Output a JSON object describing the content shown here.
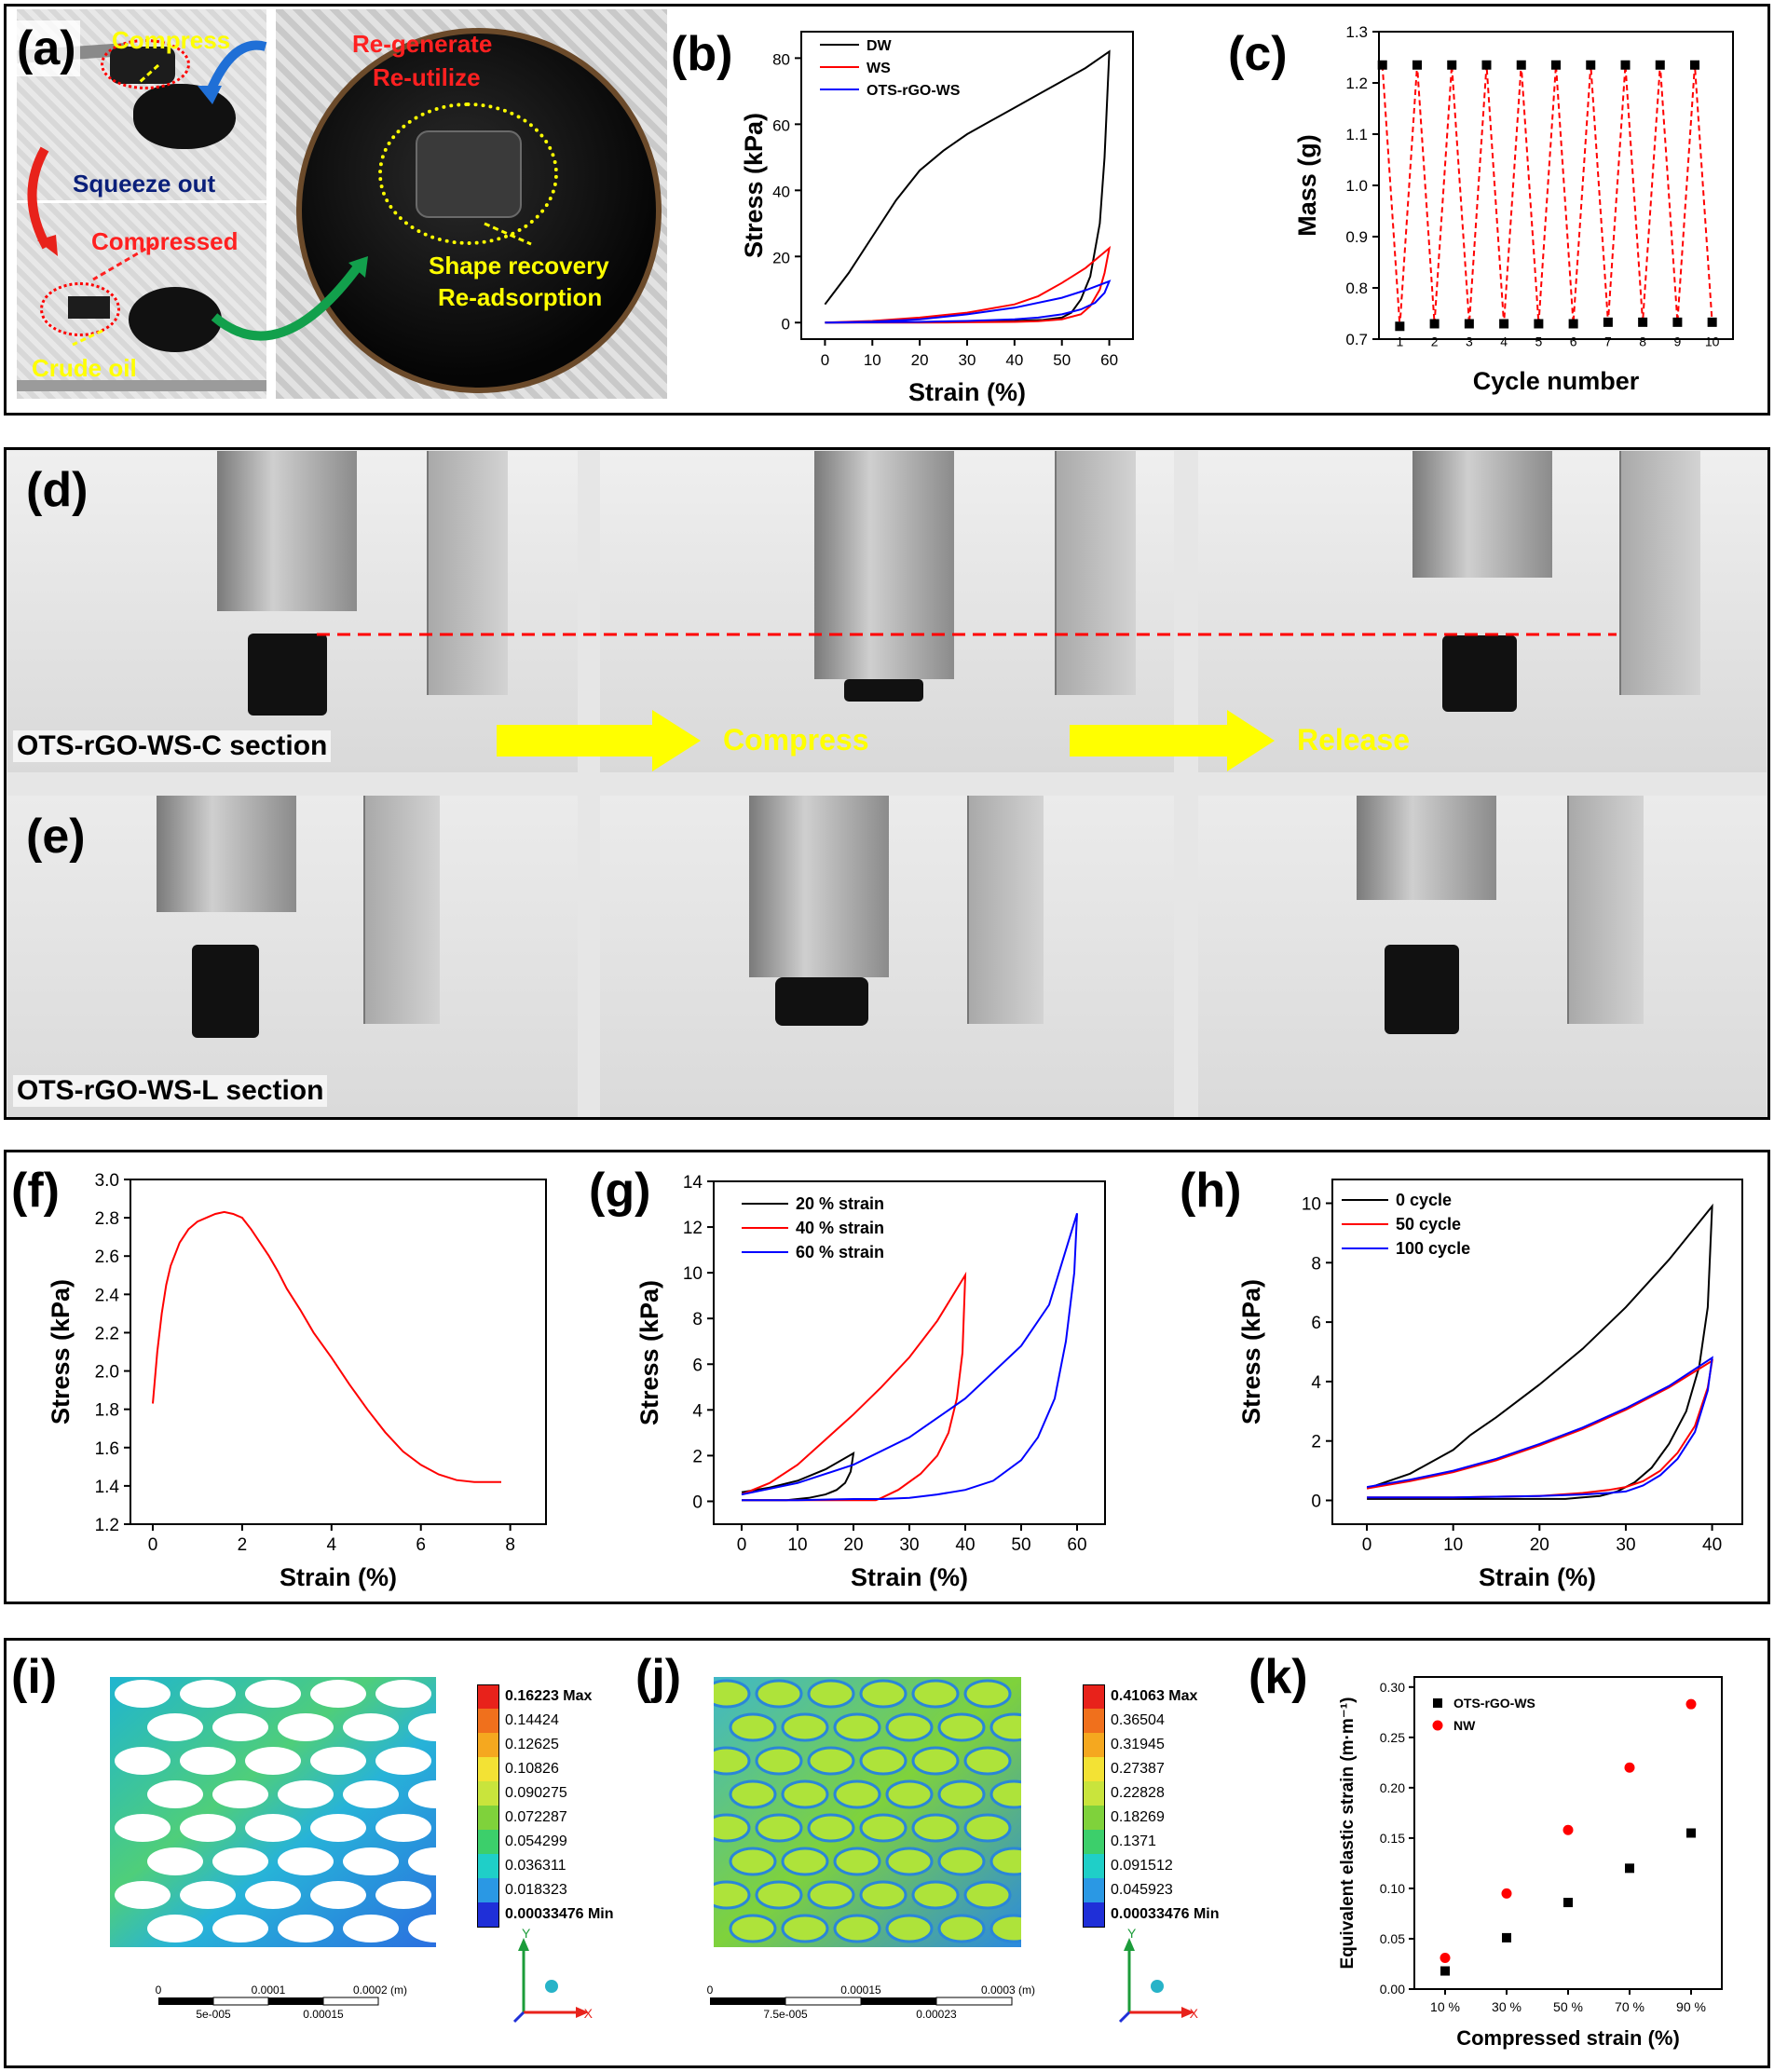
{
  "panels": {
    "a": {
      "letter": "(a)",
      "labels": {
        "compress": "Compress",
        "squeeze": "Squeeze out",
        "compressed": "Compressed",
        "crude": "Crude oil",
        "regen1": "Re-generate",
        "regen2": "Re-utilize",
        "shape1": "Shape recovery",
        "shape2": "Re-adsorption"
      }
    },
    "b": {
      "letter": "(b)"
    },
    "c": {
      "letter": "(c)"
    },
    "d": {
      "letter": "(d)",
      "caption": "OTS-rGO-WS-C section",
      "arrow1": "Compress",
      "arrow2": "Release"
    },
    "e": {
      "letter": "(e)",
      "caption": "OTS-rGO-WS-L section"
    },
    "f": {
      "letter": "(f)"
    },
    "g": {
      "letter": "(g)"
    },
    "h": {
      "letter": "(h)"
    },
    "i": {
      "letter": "(i)",
      "legend": [
        "0.16223 Max",
        "0.14424",
        "0.12625",
        "0.10826",
        "0.090275",
        "0.072287",
        "0.054299",
        "0.036311",
        "0.018323",
        "0.00033476 Min"
      ],
      "scale_top": [
        "0",
        "0.0001",
        "0.0002 (m)"
      ],
      "scale_bottom": [
        "5e-005",
        "0.00015"
      ]
    },
    "j": {
      "letter": "(j)",
      "legend": [
        "0.41063 Max",
        "0.36504",
        "0.31945",
        "0.27387",
        "0.22828",
        "0.18269",
        "0.1371",
        "0.091512",
        "0.045923",
        "0.00033476 Min"
      ],
      "scale_top": [
        "0",
        "0.00015",
        "0.0003 (m)"
      ],
      "scale_bottom": [
        "7.5e-005",
        "0.00023"
      ]
    },
    "k": {
      "letter": "(k)"
    },
    "axis_glyphs": {
      "y": "Y",
      "x": "X"
    },
    "legend_colors": [
      "#e8221b",
      "#f0701c",
      "#f5a81f",
      "#f3e234",
      "#c9e43c",
      "#7fd23b",
      "#3ccf6b",
      "#1fcfc8",
      "#2a98e4",
      "#1f2fd8"
    ]
  },
  "chart_data": [
    {
      "id": "b",
      "type": "line",
      "xlabel": "Strain (%)",
      "ylabel": "Stress (kPa)",
      "xlim": [
        -5,
        65
      ],
      "ylim": [
        -5,
        88
      ],
      "xticks": [
        0,
        10,
        20,
        30,
        40,
        50,
        60
      ],
      "yticks": [
        0,
        20,
        40,
        60,
        80
      ],
      "legend": "top-left",
      "series": [
        {
          "name": "DW",
          "color": "#000000",
          "x": [
            0,
            5,
            10,
            15,
            20,
            25,
            30,
            35,
            40,
            45,
            50,
            55,
            60,
            59,
            58,
            56,
            54,
            52,
            50,
            46,
            40,
            30,
            20,
            10,
            0
          ],
          "y": [
            5.5,
            15,
            26,
            37,
            46,
            52,
            57,
            61,
            65,
            69,
            73,
            77,
            82,
            50,
            30,
            14,
            7,
            3,
            1.5,
            0.8,
            0.5,
            0.3,
            0.2,
            0.1,
            0
          ]
        },
        {
          "name": "WS",
          "color": "#ff0000",
          "x": [
            0,
            10,
            20,
            30,
            40,
            45,
            50,
            55,
            60,
            59,
            58,
            56,
            54,
            50,
            45,
            40,
            30,
            20,
            10,
            0
          ],
          "y": [
            0,
            0.5,
            1.5,
            3,
            5.5,
            8,
            12,
            16.5,
            22.5,
            15,
            10,
            5,
            2.5,
            1,
            0.4,
            0.2,
            0.1,
            0,
            0,
            0
          ]
        },
        {
          "name": "OTS-rGO-WS",
          "color": "#0000ff",
          "x": [
            0,
            10,
            20,
            30,
            40,
            50,
            55,
            60,
            59,
            57,
            54,
            50,
            45,
            40,
            30,
            20,
            10,
            0
          ],
          "y": [
            0,
            0.3,
            1,
            2.5,
            4.5,
            7.5,
            9.8,
            12.5,
            9,
            6,
            4,
            2.5,
            1.5,
            1,
            0.5,
            0.2,
            0.1,
            0
          ]
        }
      ]
    },
    {
      "id": "c",
      "type": "scatter",
      "xlabel": "Cycle number",
      "ylabel": "Mass (g)",
      "xlim": [
        0.4,
        10.6
      ],
      "ylim": [
        0.7,
        1.3
      ],
      "yticks": [
        0.7,
        0.8,
        0.9,
        1.0,
        1.1,
        1.2,
        1.3
      ],
      "point_labels": [
        "1",
        "2",
        "3",
        "4",
        "5",
        "6",
        "7",
        "8",
        "9",
        "10"
      ],
      "series": [
        {
          "name": "",
          "color": "#000000",
          "line_color": "#ff0000",
          "x": [
            0.5,
            1,
            1.5,
            2,
            2.5,
            3,
            3.5,
            4,
            4.5,
            5,
            5.5,
            6,
            6.5,
            7,
            7.5,
            8,
            8.5,
            9,
            9.5,
            10
          ],
          "y": [
            1.235,
            0.725,
            1.235,
            0.73,
            1.235,
            0.73,
            1.235,
            0.73,
            1.235,
            0.73,
            1.235,
            0.73,
            1.235,
            0.733,
            1.235,
            0.733,
            1.235,
            0.733,
            1.235,
            0.733
          ]
        }
      ]
    },
    {
      "id": "f",
      "type": "line",
      "xlabel": "Strain (%)",
      "ylabel": "Stress (kPa)",
      "xlim": [
        -0.5,
        8.8
      ],
      "ylim": [
        1.2,
        3.0
      ],
      "xticks": [
        0,
        2,
        4,
        6,
        8
      ],
      "yticks": [
        1.2,
        1.4,
        1.6,
        1.8,
        2.0,
        2.2,
        2.4,
        2.6,
        2.8,
        3.0
      ],
      "series": [
        {
          "name": "",
          "color": "#ff0000",
          "x": [
            0,
            0.1,
            0.2,
            0.3,
            0.4,
            0.6,
            0.8,
            1.0,
            1.2,
            1.4,
            1.6,
            1.8,
            2.0,
            2.2,
            2.4,
            2.6,
            2.8,
            3.0,
            3.3,
            3.6,
            4.0,
            4.4,
            4.8,
            5.2,
            5.6,
            6.0,
            6.4,
            6.8,
            7.2,
            7.6,
            7.8
          ],
          "y": [
            1.83,
            2.1,
            2.3,
            2.45,
            2.55,
            2.67,
            2.74,
            2.78,
            2.8,
            2.82,
            2.83,
            2.82,
            2.8,
            2.74,
            2.67,
            2.6,
            2.52,
            2.43,
            2.32,
            2.2,
            2.07,
            1.93,
            1.8,
            1.68,
            1.58,
            1.51,
            1.46,
            1.43,
            1.42,
            1.42,
            1.42
          ]
        }
      ]
    },
    {
      "id": "g",
      "type": "line",
      "xlabel": "Strain (%)",
      "ylabel": "Stress (kPa)",
      "xlim": [
        -5,
        65
      ],
      "ylim": [
        -1,
        14
      ],
      "xticks": [
        0,
        10,
        20,
        30,
        40,
        50,
        60
      ],
      "yticks": [
        0,
        2,
        4,
        6,
        8,
        10,
        12,
        14
      ],
      "legend": "top-left",
      "series": [
        {
          "name": "20 % strain",
          "color": "#000000",
          "x": [
            0,
            5,
            10,
            15,
            20,
            19.5,
            18.5,
            17,
            15,
            12,
            10,
            8,
            5,
            0
          ],
          "y": [
            0.4,
            0.6,
            0.9,
            1.4,
            2.1,
            1.3,
            0.8,
            0.5,
            0.3,
            0.15,
            0.1,
            0.05,
            0.05,
            0.05
          ]
        },
        {
          "name": "40 % strain",
          "color": "#ff0000",
          "x": [
            0,
            5,
            10,
            15,
            20,
            25,
            30,
            35,
            40,
            39.5,
            38.5,
            37,
            35,
            32,
            28,
            25,
            24,
            20,
            10,
            0
          ],
          "y": [
            0.3,
            0.8,
            1.6,
            2.7,
            3.8,
            5.0,
            6.3,
            7.9,
            9.9,
            6.5,
            4.5,
            3.0,
            2.0,
            1.2,
            0.5,
            0.15,
            0.05,
            0.05,
            0.05,
            0.05
          ]
        },
        {
          "name": "60 % strain",
          "color": "#0000ff",
          "x": [
            0,
            10,
            20,
            30,
            40,
            50,
            55,
            60,
            59.5,
            58,
            56,
            53,
            50,
            45,
            40,
            35,
            30,
            25,
            20,
            10,
            0
          ],
          "y": [
            0.3,
            0.8,
            1.6,
            2.8,
            4.5,
            6.8,
            8.6,
            12.6,
            10,
            7,
            4.5,
            2.8,
            1.8,
            0.9,
            0.5,
            0.3,
            0.15,
            0.1,
            0.1,
            0.05,
            0.05
          ]
        }
      ]
    },
    {
      "id": "h",
      "type": "line",
      "xlabel": "Strain (%)",
      "ylabel": "Stress (kPa)",
      "xlim": [
        -4,
        43.5
      ],
      "ylim": [
        -0.8,
        10.8
      ],
      "xticks": [
        0,
        10,
        20,
        30,
        40
      ],
      "yticks": [
        0,
        2,
        4,
        6,
        8,
        10
      ],
      "legend": "top-left",
      "series": [
        {
          "name": "0 cycle",
          "color": "#000000",
          "x": [
            0,
            5,
            10,
            12,
            15,
            20,
            25,
            30,
            35,
            40,
            39.5,
            38.5,
            37,
            35,
            33,
            31,
            29,
            27,
            25,
            23,
            20,
            10,
            0
          ],
          "y": [
            0.4,
            0.9,
            1.7,
            2.2,
            2.8,
            3.9,
            5.1,
            6.5,
            8.1,
            9.9,
            6.5,
            4.5,
            3.0,
            1.9,
            1.1,
            0.6,
            0.3,
            0.15,
            0.1,
            0.05,
            0.05,
            0.05,
            0.05
          ]
        },
        {
          "name": "50 cycle",
          "color": "#ff0000",
          "x": [
            0,
            5,
            10,
            15,
            20,
            25,
            30,
            35,
            40,
            39.5,
            38,
            36,
            34,
            32,
            30,
            28,
            25,
            20,
            10,
            0
          ],
          "y": [
            0.4,
            0.65,
            0.95,
            1.35,
            1.85,
            2.4,
            3.05,
            3.8,
            4.7,
            3.8,
            2.5,
            1.6,
            1.0,
            0.65,
            0.45,
            0.35,
            0.25,
            0.15,
            0.1,
            0.1
          ]
        },
        {
          "name": "100 cycle",
          "color": "#0000ff",
          "x": [
            0,
            5,
            10,
            15,
            20,
            25,
            30,
            35,
            40,
            39.5,
            38,
            36,
            34,
            32,
            30,
            28,
            25,
            20,
            10,
            0
          ],
          "y": [
            0.45,
            0.7,
            1.0,
            1.4,
            1.9,
            2.45,
            3.1,
            3.85,
            4.8,
            3.7,
            2.3,
            1.4,
            0.85,
            0.5,
            0.3,
            0.25,
            0.2,
            0.15,
            0.1,
            0.1
          ]
        }
      ]
    },
    {
      "id": "k",
      "type": "scatter",
      "xlabel": "Compressed strain (%)",
      "ylabel": "Equivalent elastic strain (m·m⁻¹)",
      "categories": [
        "10 %",
        "30 %",
        "50 %",
        "70 %",
        "90 %"
      ],
      "ylim": [
        0.0,
        0.31
      ],
      "yticks": [
        0.0,
        0.05,
        0.1,
        0.15,
        0.2,
        0.25,
        0.3
      ],
      "legend": "top-left",
      "series": [
        {
          "name": "OTS-rGO-WS",
          "color": "#000000",
          "marker": "square",
          "values": [
            0.018,
            0.051,
            0.086,
            0.12,
            0.155
          ]
        },
        {
          "name": "NW",
          "color": "#ff0000",
          "marker": "circle",
          "values": [
            0.031,
            0.095,
            0.158,
            0.22,
            0.283
          ]
        }
      ]
    }
  ]
}
